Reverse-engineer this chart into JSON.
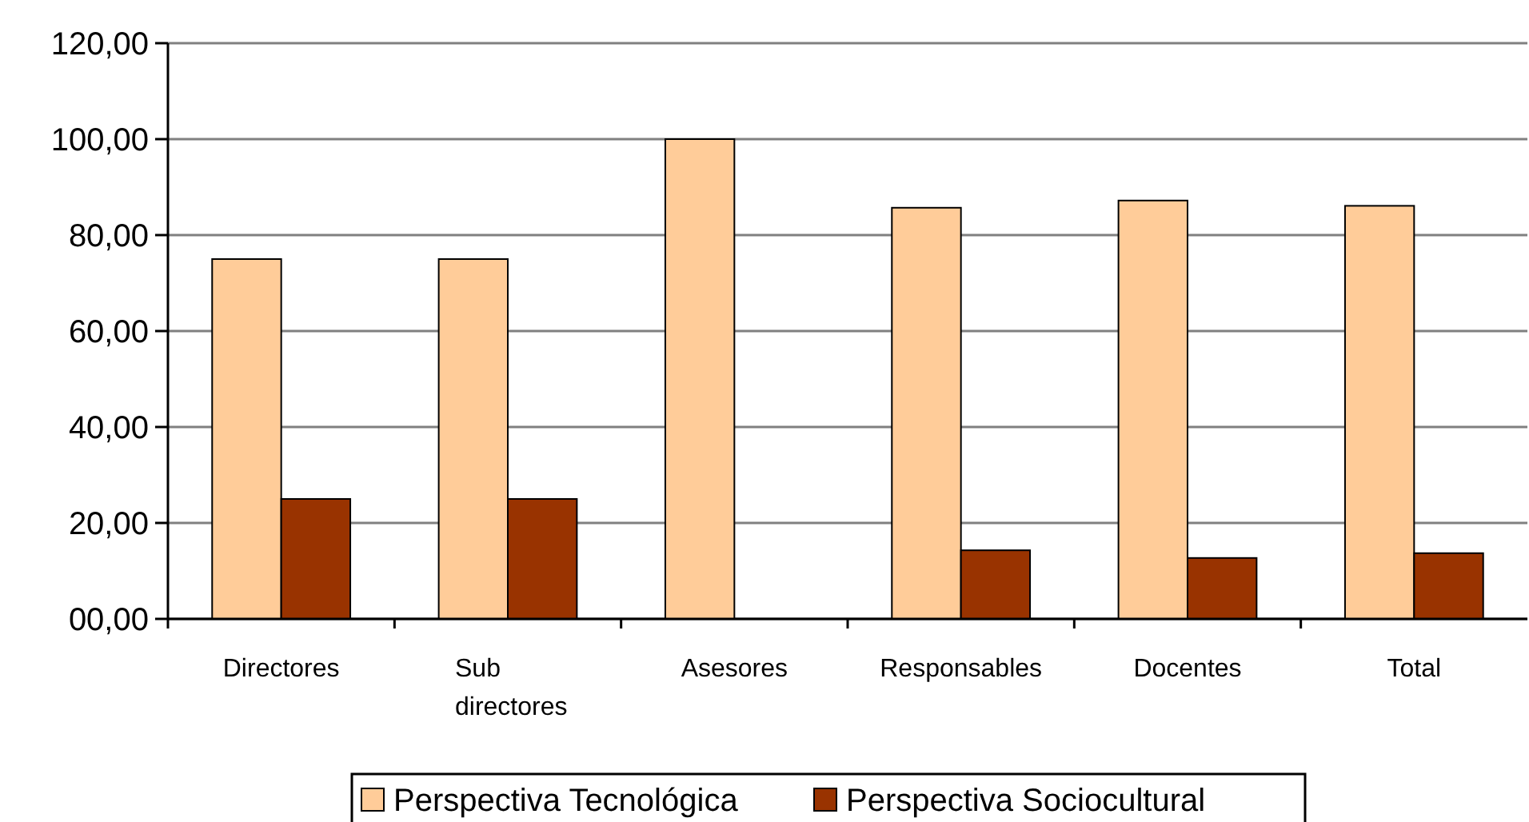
{
  "chart_data": {
    "type": "bar",
    "categories": [
      "Directores",
      "Sub directores",
      "Asesores",
      "Responsables",
      "Docentes",
      "Total"
    ],
    "series": [
      {
        "name": "Perspectiva Tecnológica",
        "color": "#ffcc99",
        "values": [
          75,
          75,
          100,
          85.7,
          87.2,
          86.1
        ]
      },
      {
        "name": "Perspectiva Sociocultural",
        "color": "#993300",
        "values": [
          25,
          25,
          0,
          14.3,
          12.7,
          13.7
        ]
      }
    ],
    "ylim": [
      0,
      120
    ],
    "yticks": [
      {
        "value": 0,
        "label": "00,00"
      },
      {
        "value": 20,
        "label": "20,00"
      },
      {
        "value": 40,
        "label": "40,00"
      },
      {
        "value": 60,
        "label": "60,00"
      },
      {
        "value": 80,
        "label": "80,00"
      },
      {
        "value": 100,
        "label": "100,00"
      },
      {
        "value": 120,
        "label": "120,00"
      }
    ],
    "grid": "y",
    "legend": "bottom"
  }
}
